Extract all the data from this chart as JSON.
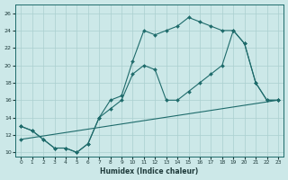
{
  "xlabel": "Humidex (Indice chaleur)",
  "background_color": "#cce8e8",
  "line_color": "#1e6b6b",
  "grid_color": "#aacfcf",
  "xlim": [
    -0.5,
    23.5
  ],
  "ylim": [
    9.5,
    27.0
  ],
  "xticks": [
    0,
    1,
    2,
    3,
    4,
    5,
    6,
    7,
    8,
    9,
    10,
    11,
    12,
    13,
    14,
    15,
    16,
    17,
    18,
    19,
    20,
    21,
    22,
    23
  ],
  "yticks": [
    10,
    12,
    14,
    16,
    18,
    20,
    22,
    24,
    26
  ],
  "line1_x": [
    0,
    1,
    2,
    3,
    4,
    5,
    6,
    7,
    8,
    9,
    10,
    11,
    12,
    13,
    14,
    15,
    16,
    17,
    18,
    19,
    20,
    21,
    22,
    23
  ],
  "line1_y": [
    13,
    12.5,
    11.5,
    10.5,
    10.5,
    10,
    11,
    14,
    16,
    16.5,
    20.5,
    24,
    23.5,
    24,
    24.5,
    25.5,
    25,
    24.5,
    24,
    24,
    22.5,
    18,
    16,
    16
  ],
  "line2_x": [
    0,
    1,
    2,
    3,
    4,
    5,
    6,
    7,
    8,
    9,
    10,
    11,
    12,
    13,
    14,
    15,
    16,
    17,
    18,
    19,
    20,
    21,
    22,
    23
  ],
  "line2_y": [
    13,
    12.5,
    11.5,
    10.5,
    10.5,
    10,
    11,
    14,
    15,
    16,
    19,
    20,
    19.5,
    16,
    16,
    17,
    18,
    19,
    20,
    24,
    22.5,
    18,
    16,
    16
  ],
  "line3_x": [
    0,
    23
  ],
  "line3_y": [
    11.5,
    16.0
  ]
}
